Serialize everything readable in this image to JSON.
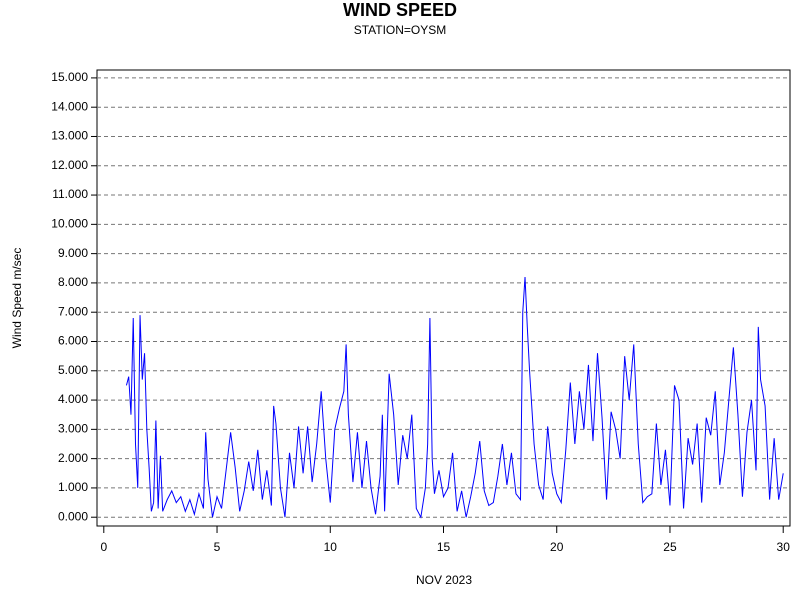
{
  "chart_data": {
    "type": "line",
    "title": "WIND SPEED",
    "subtitle": "STATION=OYSM",
    "x_label": "NOV 2023",
    "y_label": "Wind Speed m/sec",
    "color": "#0000ff",
    "grid": true,
    "xlim": [
      -0.3,
      30.3
    ],
    "ylim": [
      -0.3,
      15.27
    ],
    "xticks": [
      0,
      5,
      10,
      15,
      20,
      25,
      30
    ],
    "yticks": [
      {
        "value": 0,
        "label": "0.000"
      },
      {
        "value": 1,
        "label": "1.000"
      },
      {
        "value": 2,
        "label": "2.000"
      },
      {
        "value": 3,
        "label": "3.000"
      },
      {
        "value": 4,
        "label": "4.000"
      },
      {
        "value": 5,
        "label": "5.000"
      },
      {
        "value": 6,
        "label": "6.000"
      },
      {
        "value": 7,
        "label": "7.000"
      },
      {
        "value": 8,
        "label": "8.000"
      },
      {
        "value": 9,
        "label": "9.000"
      },
      {
        "value": 10,
        "label": "10.000"
      },
      {
        "value": 11,
        "label": "11.000"
      },
      {
        "value": 12,
        "label": "12.000"
      },
      {
        "value": 13,
        "label": "13.000"
      },
      {
        "value": 14,
        "label": "14.000"
      },
      {
        "value": 15,
        "label": "15.000"
      }
    ],
    "x": [
      1.0,
      1.1,
      1.2,
      1.3,
      1.4,
      1.5,
      1.6,
      1.7,
      1.8,
      1.9,
      2.0,
      2.1,
      2.2,
      2.3,
      2.4,
      2.5,
      2.6,
      2.8,
      3.0,
      3.2,
      3.4,
      3.6,
      3.8,
      4.0,
      4.2,
      4.4,
      4.5,
      4.6,
      4.8,
      5.0,
      5.2,
      5.4,
      5.6,
      5.8,
      6.0,
      6.2,
      6.4,
      6.6,
      6.8,
      7.0,
      7.2,
      7.4,
      7.5,
      7.6,
      7.8,
      8.0,
      8.2,
      8.4,
      8.6,
      8.8,
      9.0,
      9.2,
      9.4,
      9.6,
      9.8,
      10.0,
      10.2,
      10.4,
      10.6,
      10.7,
      10.8,
      11.0,
      11.2,
      11.4,
      11.6,
      11.8,
      12.0,
      12.2,
      12.3,
      12.4,
      12.6,
      12.8,
      13.0,
      13.2,
      13.4,
      13.6,
      13.8,
      14.0,
      14.2,
      14.3,
      14.4,
      14.5,
      14.6,
      14.8,
      15.0,
      15.2,
      15.4,
      15.6,
      15.8,
      16.0,
      16.2,
      16.4,
      16.6,
      16.8,
      17.0,
      17.2,
      17.4,
      17.6,
      17.8,
      18.0,
      18.2,
      18.4,
      18.5,
      18.6,
      18.7,
      18.8,
      19.0,
      19.2,
      19.4,
      19.6,
      19.8,
      20.0,
      20.2,
      20.4,
      20.6,
      20.8,
      21.0,
      21.2,
      21.4,
      21.6,
      21.8,
      22.0,
      22.2,
      22.4,
      22.6,
      22.8,
      23.0,
      23.2,
      23.4,
      23.6,
      23.8,
      24.0,
      24.2,
      24.4,
      24.6,
      24.8,
      25.0,
      25.2,
      25.4,
      25.6,
      25.8,
      26.0,
      26.2,
      26.4,
      26.6,
      26.8,
      27.0,
      27.2,
      27.4,
      27.6,
      27.8,
      28.0,
      28.2,
      28.4,
      28.6,
      28.8,
      28.9,
      29.0,
      29.2,
      29.4,
      29.6,
      29.8,
      30.0
    ],
    "values": [
      4.5,
      4.8,
      3.5,
      6.8,
      2.5,
      1.0,
      6.9,
      4.7,
      5.6,
      3.0,
      1.7,
      0.2,
      0.5,
      3.3,
      0.3,
      2.1,
      0.2,
      0.6,
      0.9,
      0.5,
      0.7,
      0.2,
      0.6,
      0.1,
      0.8,
      0.3,
      2.9,
      1.3,
      0.0,
      0.7,
      0.3,
      1.6,
      2.9,
      1.7,
      0.2,
      0.9,
      1.9,
      0.9,
      2.3,
      0.6,
      1.6,
      0.4,
      3.8,
      3.2,
      1.0,
      0.0,
      2.2,
      1.0,
      3.1,
      1.5,
      3.1,
      1.2,
      2.5,
      4.3,
      2.0,
      0.5,
      3.0,
      3.7,
      4.3,
      5.9,
      3.5,
      1.2,
      2.9,
      1.0,
      2.6,
      1.0,
      0.1,
      1.4,
      3.5,
      0.2,
      4.9,
      3.5,
      1.1,
      2.8,
      2.0,
      3.5,
      0.3,
      0.0,
      1.0,
      2.5,
      6.8,
      2.0,
      0.8,
      1.6,
      0.7,
      1.0,
      2.2,
      0.2,
      0.9,
      0.0,
      0.7,
      1.5,
      2.6,
      0.9,
      0.4,
      0.5,
      1.4,
      2.5,
      1.1,
      2.2,
      0.8,
      0.6,
      7.0,
      8.2,
      6.5,
      5.0,
      2.5,
      1.1,
      0.6,
      3.1,
      1.5,
      0.8,
      0.5,
      2.3,
      4.6,
      2.5,
      4.3,
      3.0,
      5.2,
      2.6,
      5.6,
      3.4,
      0.6,
      3.6,
      3.0,
      2.0,
      5.5,
      4.0,
      5.9,
      2.5,
      0.5,
      0.7,
      0.8,
      3.2,
      1.1,
      2.3,
      0.4,
      4.5,
      4.0,
      0.3,
      2.7,
      1.8,
      3.2,
      0.5,
      3.4,
      2.8,
      4.3,
      1.1,
      2.2,
      4.0,
      5.8,
      3.5,
      0.7,
      2.9,
      4.0,
      1.6,
      6.5,
      4.7,
      3.8,
      0.6,
      2.7,
      0.6,
      1.5
    ]
  }
}
